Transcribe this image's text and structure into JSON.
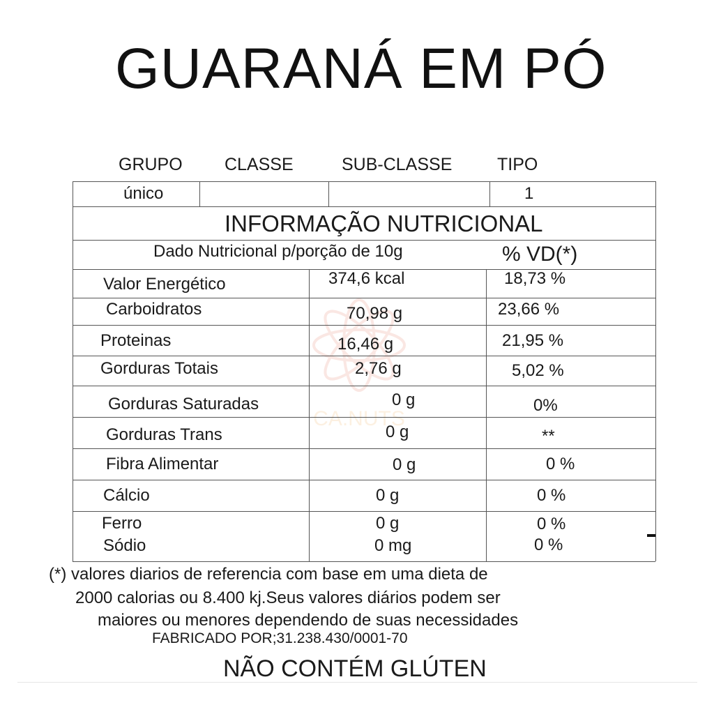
{
  "title": "GUARANÁ EM PÓ",
  "classification": {
    "headers": [
      "GRUPO",
      "CLASSE",
      "SUB-CLASSE",
      "TIPO"
    ],
    "values": [
      "único",
      "",
      "",
      "1"
    ]
  },
  "nutrition": {
    "heading": "INFORMAÇÃO NUTRICIONAL",
    "portion_label": "Dado Nutricional p/porção de 10g",
    "vd_label": "% VD(*)",
    "rows": [
      {
        "name": "Valor Energético",
        "amount": "374,6 kcal",
        "vd": "18,73 %"
      },
      {
        "name": "Carboidratos",
        "amount": "70,98 g",
        "vd": "23,66 %"
      },
      {
        "name": "Proteinas",
        "amount": "16,46 g",
        "vd": "21,95 %"
      },
      {
        "name": "Gorduras Totais",
        "amount": "2,76 g",
        "vd": "5,02 %"
      },
      {
        "name": "Gorduras Saturadas",
        "amount": "0 g",
        "vd": "0%"
      },
      {
        "name": "Gorduras Trans",
        "amount": "0 g",
        "vd": "**"
      },
      {
        "name": "Fibra Alimentar",
        "amount": "0 g",
        "vd": "0 %"
      },
      {
        "name": "Cálcio",
        "amount": "0 g",
        "vd": "0 %"
      },
      {
        "name": "Ferro",
        "amount": "0 g",
        "vd": "0 %"
      },
      {
        "name": "Sódio",
        "amount": "0 mg",
        "vd": "0 %"
      }
    ]
  },
  "footnote": {
    "line1": "(*) valores diarios de referencia com base em uma dieta de",
    "line2": "2000 calorias ou 8.400 kj.Seus valores diários podem ser",
    "line3": "maiores ou menores dependendo de suas necessidades",
    "manufacturer": "FABRICADO POR;31.238.430/0001-70"
  },
  "gluten_notice": "NÃO CONTÉM GLÚTEN",
  "watermark": {
    "text": "CA.NUTS",
    "color": "#e8806a"
  }
}
